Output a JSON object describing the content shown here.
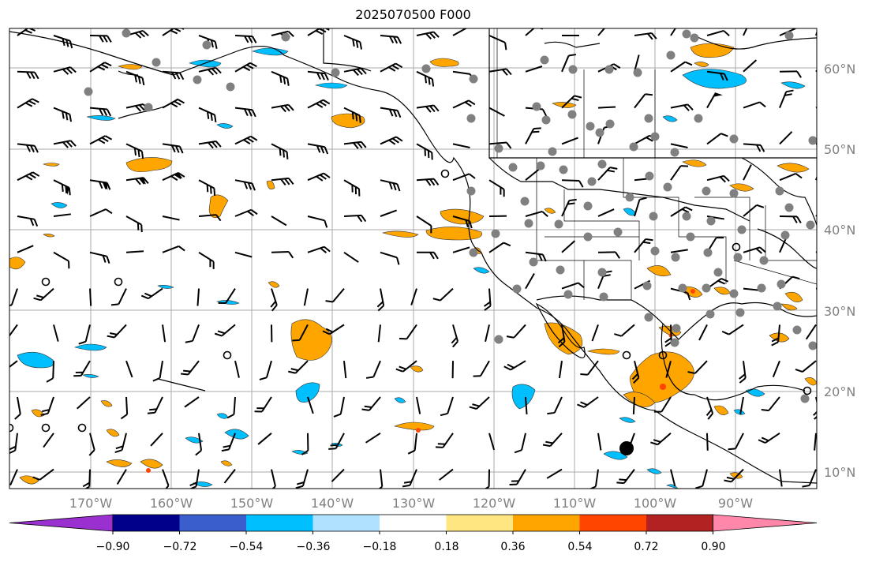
{
  "title": "2025070500 F000",
  "map": {
    "lon_labels": [
      "170°W",
      "160°W",
      "150°W",
      "140°W",
      "130°W",
      "120°W",
      "110°W",
      "100°W",
      "90°W"
    ],
    "lat_labels": [
      "60°N",
      "50°N",
      "40°N",
      "30°N",
      "20°N",
      "10°N"
    ],
    "gridline_color": "#a0a0a0",
    "coastline_color": "#000000",
    "station_marker_color": "#808080"
  },
  "colorbar": {
    "tick_labels": [
      "−0.90",
      "−0.72",
      "−0.54",
      "−0.36",
      "−0.18",
      "0.18",
      "0.36",
      "0.54",
      "0.72",
      "0.90"
    ],
    "colors": [
      "#9b30d0",
      "#00008b",
      "#3a5fcd",
      "#00bfff",
      "#b0e2ff",
      "#ffffff",
      "#ffe680",
      "#ffa500",
      "#ff4500",
      "#b22222",
      "#ff88aa"
    ]
  },
  "legend_icons": {
    "wind_barb": "wind-barb-icon",
    "station": "station-dot-icon",
    "calm": "calm-circle-icon"
  }
}
